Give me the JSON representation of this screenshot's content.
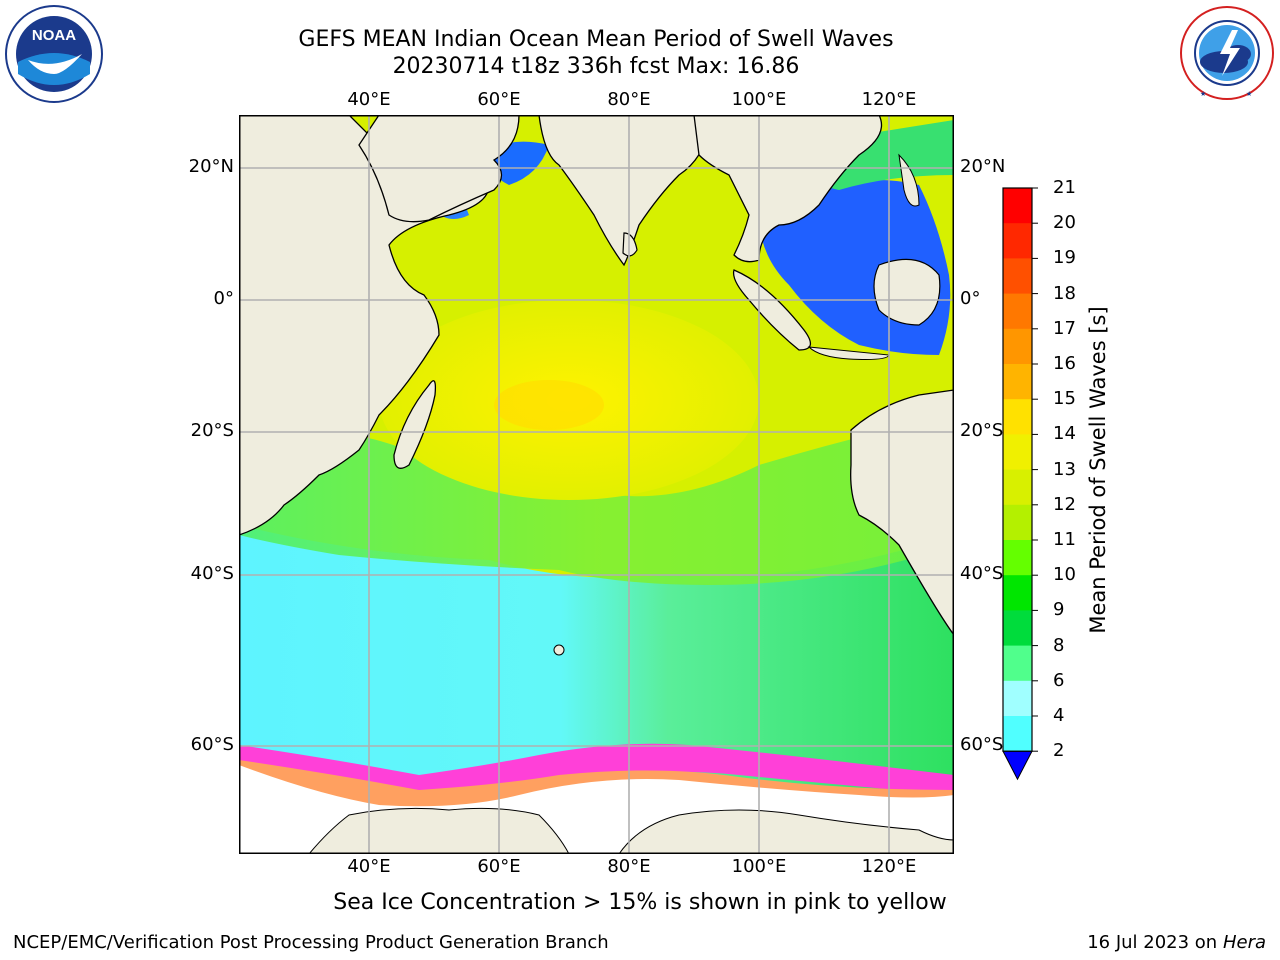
{
  "header": {
    "title_line1": "GEFS MEAN Indian Ocean Mean Period of Swell Waves",
    "title_line2": "20230714 t18z 336h fcst   Max: 16.86"
  },
  "logos": {
    "left": {
      "name": "noaa-logo",
      "text": "NOAA",
      "ring_text": "NATIONAL OCEANIC AND ATMOSPHERIC ADMINISTRATION · U.S. DEPARTMENT OF COMMERCE"
    },
    "right": {
      "name": "nws-logo",
      "ring_text": "NATIONAL WEATHER SERVICE"
    }
  },
  "map": {
    "lon_labels": [
      "40°E",
      "60°E",
      "80°E",
      "100°E",
      "120°E"
    ],
    "lat_labels": [
      "20°N",
      "0°",
      "20°S",
      "40°S",
      "60°S"
    ],
    "colors": {
      "land": "#efedde",
      "coast": "#000000",
      "grid": "#b0b0b0",
      "ice": "#ffffff"
    }
  },
  "colorbar": {
    "label": "Mean Period of Swell Waves [s]",
    "ticks": [
      "21",
      "20",
      "19",
      "18",
      "17",
      "16",
      "15",
      "14",
      "13",
      "12",
      "11",
      "10",
      "9",
      "8",
      "6",
      "4",
      "2"
    ],
    "colors": [
      "#ff0000",
      "#ff2800",
      "#ff5000",
      "#ff7800",
      "#ff9600",
      "#ffb400",
      "#ffe100",
      "#f0f000",
      "#d8f000",
      "#b4f000",
      "#64ff00",
      "#00e600",
      "#00dc3c",
      "#50ff8c",
      "#a0ffff",
      "#50ffff",
      "#00f0ff",
      "#0080ff",
      "#0000ff"
    ],
    "extend_color": "#0000ff"
  },
  "footer": {
    "note": "Sea Ice Concentration > 15% is shown in pink to yellow",
    "credit": "NCEP/EMC/Verification Post Processing Product Generation Branch",
    "date": "16 Jul 2023 on",
    "machine": "Hera"
  }
}
